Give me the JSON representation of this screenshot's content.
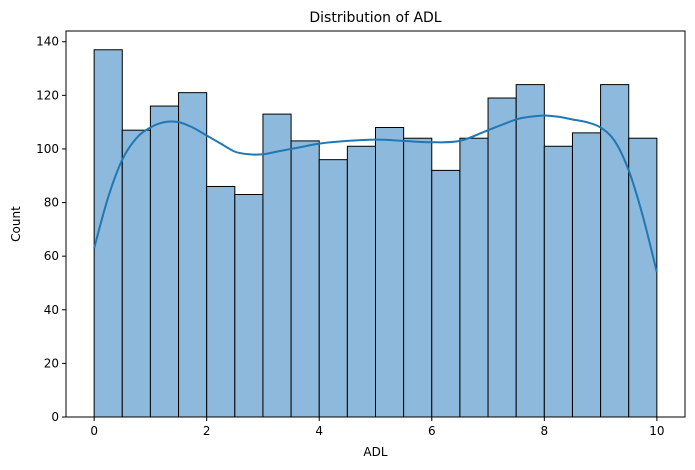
{
  "chart_data": {
    "type": "bar",
    "title": "Distribution of ADL",
    "xlabel": "ADL",
    "ylabel": "Count",
    "xlim": [
      -0.5,
      10.5
    ],
    "ylim": [
      0,
      144
    ],
    "x_ticks": [
      0,
      2,
      4,
      6,
      8,
      10
    ],
    "y_ticks": [
      0,
      20,
      40,
      60,
      80,
      100,
      120,
      140
    ],
    "bin_edges": [
      0,
      0.5,
      1,
      1.5,
      2,
      2.5,
      3,
      3.5,
      4,
      4.5,
      5,
      5.5,
      6,
      6.5,
      7,
      7.5,
      8,
      8.5,
      9,
      9.5,
      10
    ],
    "values": [
      137,
      107,
      116,
      121,
      86,
      83,
      113,
      103,
      96,
      101,
      108,
      104,
      92,
      104,
      119,
      124,
      101,
      106,
      124,
      104
    ],
    "kde": {
      "x": [
        0,
        0.25,
        0.5,
        0.75,
        1.0,
        1.25,
        1.5,
        1.75,
        2.0,
        2.25,
        2.5,
        2.75,
        3.0,
        3.25,
        3.5,
        3.75,
        4.0,
        4.5,
        5.0,
        5.5,
        6.0,
        6.5,
        7.0,
        7.5,
        7.75,
        8.0,
        8.25,
        8.5,
        8.75,
        9.0,
        9.25,
        9.5,
        9.75,
        10.0
      ],
      "y": [
        63,
        82,
        96,
        104,
        108,
        110,
        110,
        108,
        105,
        102,
        99,
        98,
        98,
        99,
        100,
        101,
        102,
        103,
        103.5,
        103,
        102.5,
        103,
        107,
        111,
        112,
        112.5,
        112,
        111,
        110,
        108,
        103,
        92,
        75,
        54
      ]
    },
    "colors": {
      "bar_fill": "#8dbadc",
      "bar_edge": "#000000",
      "kde_line": "#1f77b4"
    },
    "grid": false,
    "legend": "none"
  }
}
